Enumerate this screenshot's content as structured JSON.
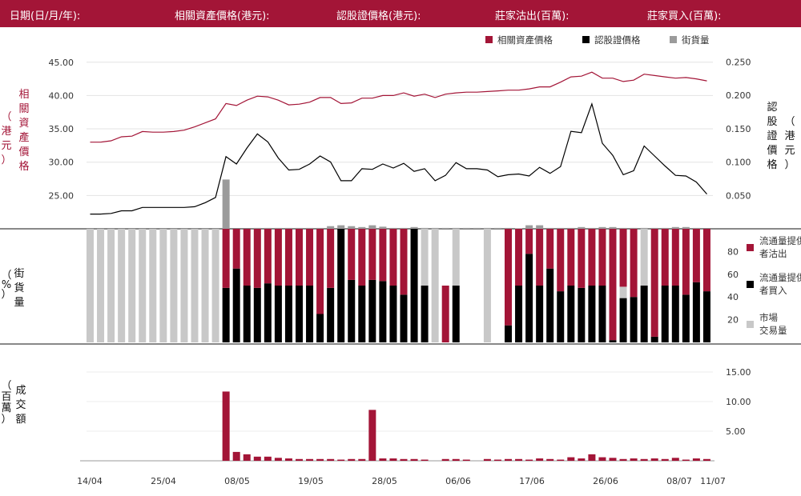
{
  "header": {
    "date_label": "日期(日/月/年):",
    "asset_label": "相關資產價格(港元):",
    "warrant_label": "認股證價格(港元):",
    "sell_label": "莊家沽出(百萬):",
    "buy_label": "莊家買入(百萬):"
  },
  "colors": {
    "accent": "#a31537",
    "black": "#000000",
    "grey": "#9b9b9b",
    "light_grey": "#c8c8c8"
  },
  "legend_top": [
    "相關資產價格",
    "認股證價格",
    "街貨量"
  ],
  "legend_mid": [
    "流通量提供者沽出",
    "流通量提供者買入",
    "市場交易量"
  ],
  "chart_data": [
    {
      "type": "line",
      "left_axis_label": "相關資產價格（港元）",
      "right_axis_label": "認股證價格（港元）",
      "left_ticks": [
        "45.00",
        "40.00",
        "35.00",
        "30.00",
        "25.00"
      ],
      "left_ylim": [
        20,
        47
      ],
      "right_ticks": [
        "0.250",
        "0.200",
        "0.150",
        "0.100",
        "0.050"
      ],
      "right_ylim": [
        0.0,
        0.264
      ],
      "asset_price": [
        33.0,
        33.0,
        33.2,
        33.8,
        33.9,
        34.6,
        34.5,
        34.5,
        34.6,
        34.8,
        35.3,
        35.9,
        36.5,
        38.8,
        38.5,
        39.3,
        39.9,
        39.8,
        39.3,
        38.6,
        38.7,
        39.0,
        39.7,
        39.7,
        38.8,
        38.9,
        39.6,
        39.6,
        40.0,
        40.0,
        40.4,
        39.9,
        40.2,
        39.7,
        40.2,
        40.4,
        40.5,
        40.5,
        40.6,
        40.7,
        40.8,
        40.8,
        41.0,
        41.3,
        41.3,
        42.0,
        42.8,
        42.9,
        43.5,
        42.6,
        42.6,
        42.1,
        42.3,
        43.2,
        43.0,
        42.8,
        42.6,
        42.7,
        42.5,
        42.2
      ],
      "warrant_price": [
        0.022,
        0.022,
        0.023,
        0.027,
        0.027,
        0.032,
        0.032,
        0.032,
        0.032,
        0.032,
        0.033,
        0.039,
        0.047,
        0.108,
        0.097,
        0.121,
        0.142,
        0.13,
        0.106,
        0.088,
        0.089,
        0.097,
        0.109,
        0.1,
        0.072,
        0.072,
        0.09,
        0.089,
        0.097,
        0.091,
        0.098,
        0.086,
        0.09,
        0.072,
        0.08,
        0.099,
        0.09,
        0.09,
        0.088,
        0.078,
        0.081,
        0.082,
        0.079,
        0.092,
        0.083,
        0.093,
        0.146,
        0.144,
        0.187,
        0.128,
        0.11,
        0.081,
        0.087,
        0.124,
        0.109,
        0.094,
        0.08,
        0.079,
        0.07,
        0.052
      ],
      "street_volume_top": [
        0,
        0,
        0,
        0,
        0,
        0,
        0,
        0,
        0,
        0,
        0,
        0,
        0,
        28,
        0,
        0,
        0.5,
        0.5,
        0.5,
        0.5,
        0.5,
        0.5,
        0.5,
        1.5,
        2,
        1.5,
        1,
        2,
        1.2,
        0.5,
        0.5,
        1,
        0.5,
        0.5,
        0.5,
        0.5,
        0.5,
        0.5,
        0.5,
        0.5,
        0.5,
        0.3,
        2,
        2,
        0.5,
        0.5,
        0.5,
        1,
        0.5,
        1,
        1,
        0.5,
        0.5,
        0.5,
        0.5,
        0.5,
        1,
        1,
        0.5,
        0
      ]
    },
    {
      "type": "stacked-bar",
      "axis_label": "街貨量（%）",
      "ticks": [
        "80",
        "60",
        "40",
        "20"
      ],
      "ylim": [
        0,
        100
      ],
      "categories": [
        "14/04",
        "25/04",
        "08/05",
        "19/05",
        "28/05",
        "06/06",
        "17/06",
        "26/06",
        "08/07",
        "11/07"
      ],
      "sell_pct": [
        0,
        0,
        0,
        0,
        0,
        0,
        0,
        0,
        0,
        0,
        0,
        0,
        0,
        52,
        35,
        50,
        52,
        48,
        50,
        50,
        50,
        50,
        75,
        52,
        0,
        45,
        50,
        45,
        46,
        50,
        58,
        0,
        0,
        0,
        50,
        0,
        0,
        0,
        0,
        0,
        85,
        50,
        22,
        50,
        35,
        55,
        50,
        52,
        50,
        50,
        98,
        51,
        60,
        0,
        95,
        50,
        50,
        58,
        47,
        55
      ],
      "buy_pct": [
        0,
        0,
        0,
        0,
        0,
        0,
        0,
        0,
        0,
        0,
        0,
        0,
        0,
        48,
        65,
        50,
        48,
        52,
        50,
        50,
        50,
        50,
        25,
        48,
        100,
        55,
        50,
        55,
        54,
        50,
        42,
        100,
        50,
        0,
        0,
        50,
        0,
        0,
        0,
        0,
        15,
        50,
        78,
        50,
        65,
        45,
        50,
        48,
        50,
        50,
        2,
        39,
        40,
        50,
        5,
        50,
        50,
        42,
        53,
        45
      ],
      "market_pct": [
        100,
        100,
        100,
        100,
        100,
        100,
        100,
        100,
        100,
        100,
        100,
        100,
        100,
        0,
        0,
        0,
        0,
        0,
        0,
        0,
        0,
        0,
        0,
        0,
        0,
        0,
        0,
        0,
        0,
        0,
        0,
        0,
        50,
        100,
        0,
        50,
        0,
        0,
        100,
        0,
        0,
        0,
        0,
        0,
        0,
        0,
        0,
        0,
        0,
        0,
        0,
        10,
        0,
        50,
        0,
        0,
        0,
        0,
        0,
        0
      ]
    },
    {
      "type": "bar",
      "axis_label": "成交額（百萬）",
      "ticks": [
        "15.00",
        "10.00",
        "5.00"
      ],
      "ylim": [
        0,
        17
      ],
      "turnover": [
        0,
        0,
        0,
        0,
        0,
        0,
        0,
        0,
        0,
        0,
        0,
        0,
        0,
        11.7,
        1.5,
        1.1,
        0.7,
        0.7,
        0.5,
        0.4,
        0.3,
        0.3,
        0.3,
        0.3,
        0.2,
        0.3,
        0.3,
        8.6,
        0.4,
        0.4,
        0.3,
        0.3,
        0.2,
        0,
        0.3,
        0.3,
        0.2,
        0,
        0.3,
        0.2,
        0.3,
        0.3,
        0.2,
        0.4,
        0.3,
        0.2,
        0.6,
        0.4,
        1.1,
        0.6,
        0.5,
        0.3,
        0.4,
        0.3,
        0.4,
        0.3,
        0.5,
        0.2,
        0.4,
        0.3
      ]
    }
  ]
}
